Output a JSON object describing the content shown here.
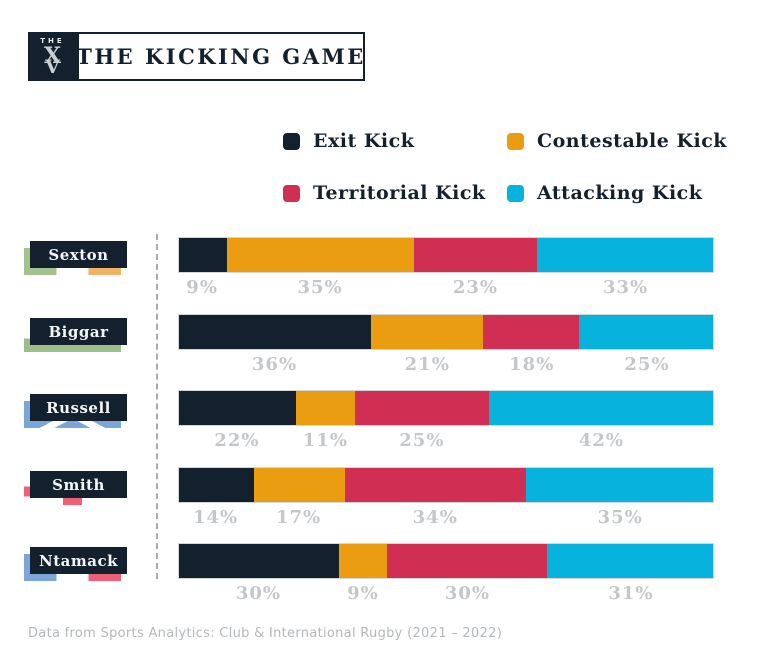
{
  "header": {
    "logo_top": "THE",
    "logo_x": "X",
    "logo_v": "V",
    "title": "THE KICKING GAME"
  },
  "colors": {
    "navy": "#13202E",
    "orange": "#EB9D11",
    "red": "#D02E52",
    "cyan": "#07B2DD",
    "pct_text": "#C4C7CA",
    "grid_line": "#A6ABB0",
    "bar_border": "#D3D6D9",
    "footer_text": "#B4B8BB"
  },
  "chart_data": {
    "type": "bar",
    "variant": "horizontal-stacked",
    "unit": "%",
    "title": "THE KICKING GAME",
    "categories": [
      "Sexton",
      "Biggar",
      "Russell",
      "Smith",
      "Ntamack"
    ],
    "series": [
      {
        "name": "Exit Kick",
        "color": "#13202E",
        "values": [
          9,
          36,
          22,
          14,
          30
        ]
      },
      {
        "name": "Contestable Kick",
        "color": "#EB9D11",
        "values": [
          35,
          21,
          11,
          17,
          9
        ]
      },
      {
        "name": "Territorial Kick",
        "color": "#D02E52",
        "values": [
          23,
          18,
          25,
          34,
          30
        ]
      },
      {
        "name": "Attacking Kick",
        "color": "#07B2DD",
        "values": [
          33,
          25,
          42,
          35,
          31
        ]
      }
    ],
    "xlim": [
      0,
      100
    ],
    "legend_position": "top",
    "value_labels": "below-each-segment",
    "grid": "single-dashed-baseline"
  },
  "players": [
    {
      "name": "Sexton",
      "flag": {
        "country": "ireland",
        "type": "vertical",
        "colors": [
          "#A3C38E",
          "#FFFFFF",
          "#F2B266"
        ]
      }
    },
    {
      "name": "Biggar",
      "flag": {
        "country": "wales",
        "type": "wales",
        "colors": [
          "#FFFFFF",
          "#9CBF8A",
          "#EF6076"
        ]
      }
    },
    {
      "name": "Russell",
      "flag": {
        "country": "scotland",
        "type": "saltire",
        "colors": [
          "#7BA6D9",
          "#FFFFFF"
        ]
      }
    },
    {
      "name": "Smith",
      "flag": {
        "country": "england",
        "type": "cross",
        "colors": [
          "#FFFFFF",
          "#EF6076"
        ]
      }
    },
    {
      "name": "Ntamack",
      "flag": {
        "country": "france",
        "type": "vertical",
        "colors": [
          "#7BA6D9",
          "#FFFFFF",
          "#EF6076"
        ]
      }
    }
  ],
  "footer": {
    "source": "Data from Sports Analytics: Club & International Rugby (2021 – 2022)"
  }
}
